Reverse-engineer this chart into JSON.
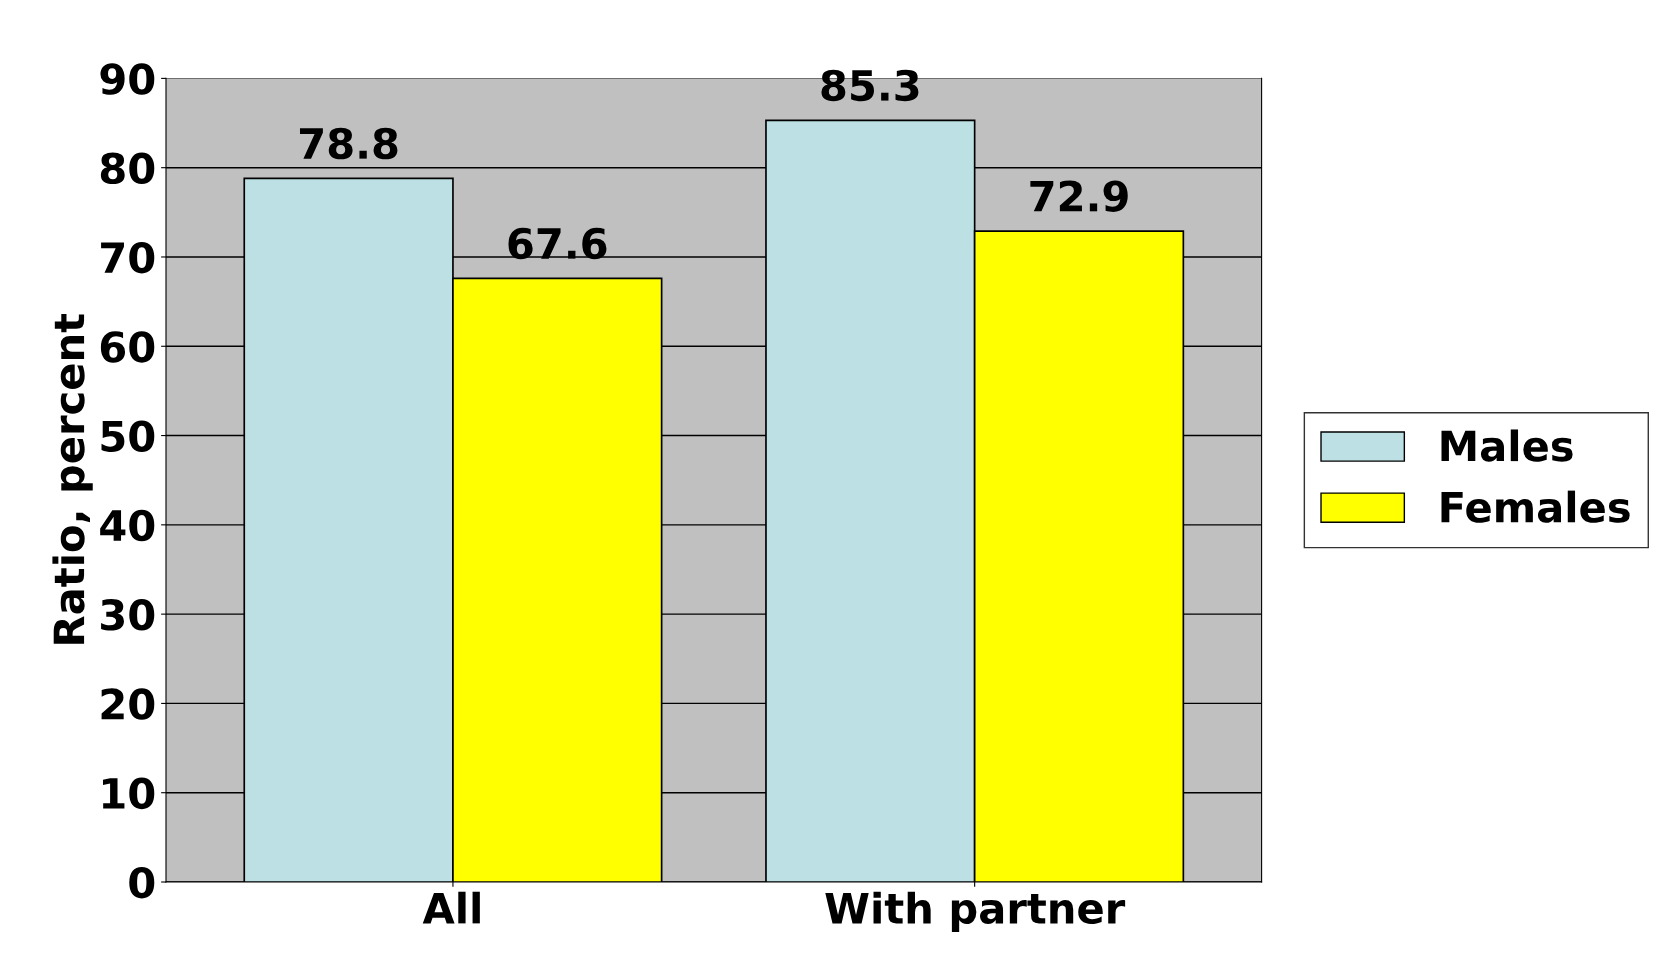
{
  "chart_data": {
    "type": "bar",
    "ylabel": "Ratio, percent",
    "categories": [
      "All",
      "With partner"
    ],
    "series": [
      {
        "name": "Males",
        "color": "#bce0e4",
        "values": [
          78.8,
          85.3
        ]
      },
      {
        "name": "Females",
        "color": "#ffff00",
        "values": [
          67.6,
          72.9
        ]
      }
    ],
    "ylim": [
      0,
      90
    ],
    "yticks": [
      0,
      10,
      20,
      30,
      40,
      50,
      60,
      70,
      80,
      90
    ],
    "grid": "y",
    "legend": "right",
    "data_labels": true
  }
}
